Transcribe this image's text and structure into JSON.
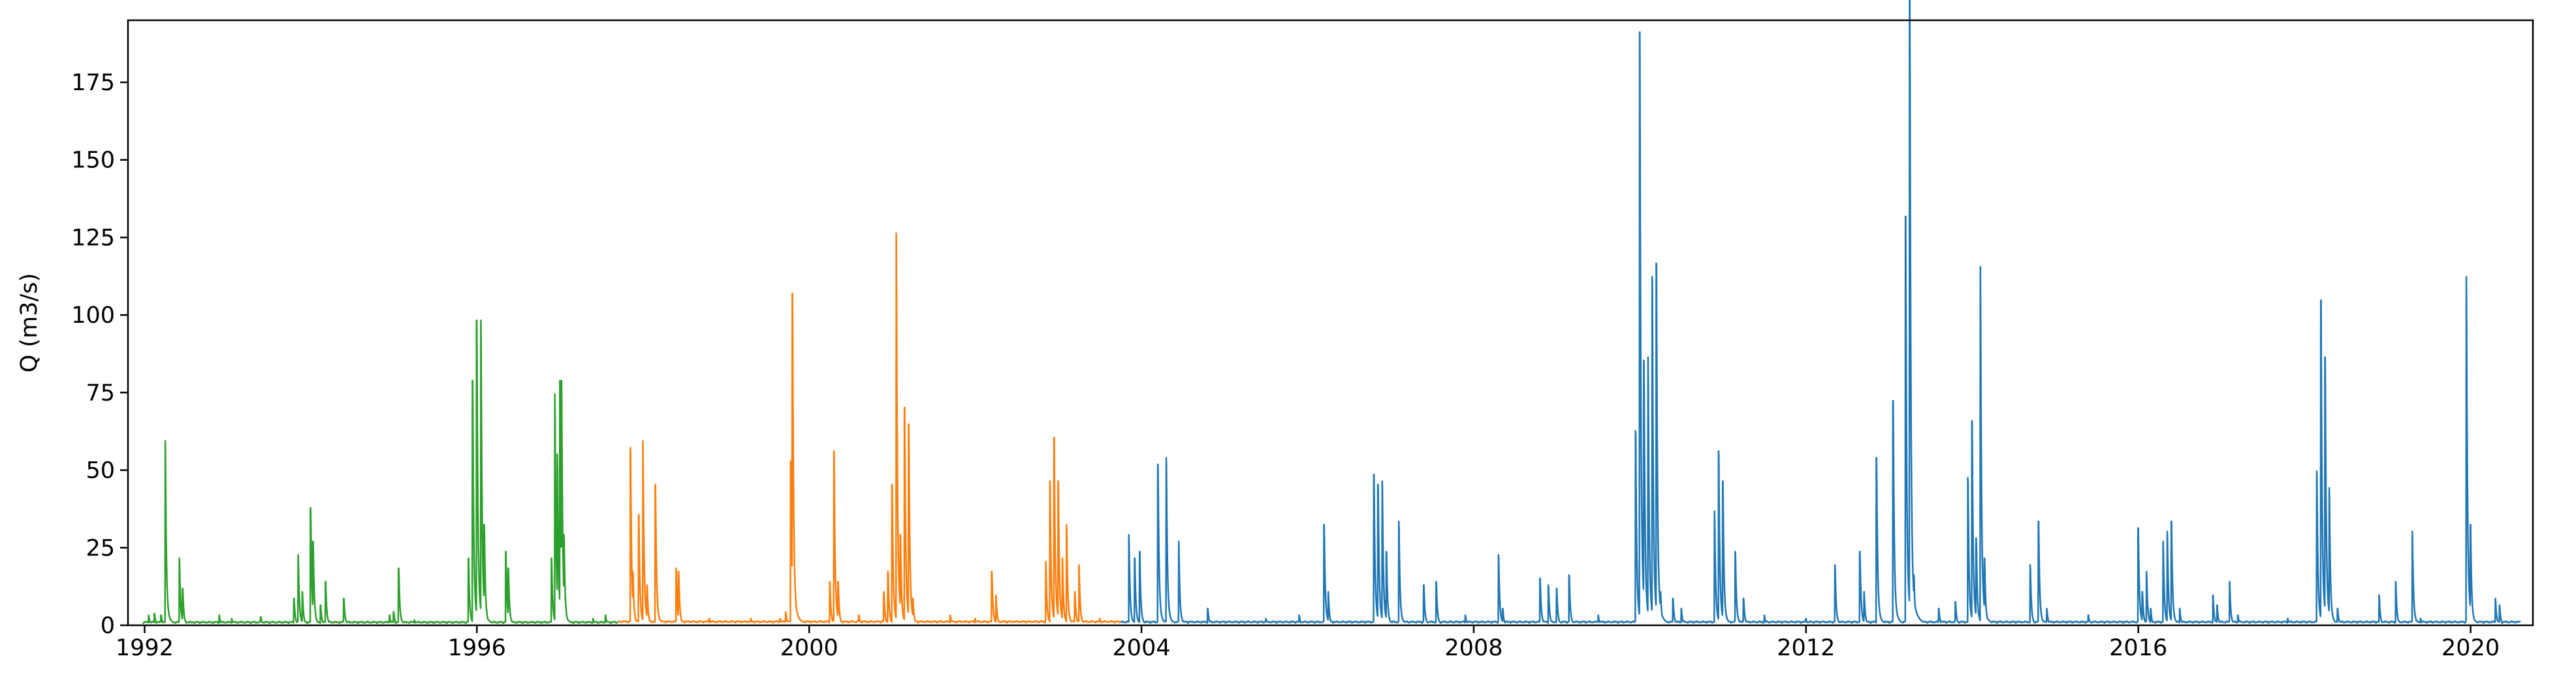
{
  "chart_data": {
    "type": "line",
    "title": "",
    "xlabel": "",
    "ylabel": "Q (m3/s)",
    "xlim": [
      1991.8,
      2020.75
    ],
    "ylim": [
      0,
      195
    ],
    "grid": false,
    "legend": "none",
    "x_ticks": [
      {
        "value": 1992,
        "label": "1992"
      },
      {
        "value": 1996,
        "label": "1996"
      },
      {
        "value": 2000,
        "label": "2000"
      },
      {
        "value": 2004,
        "label": "2004"
      },
      {
        "value": 2008,
        "label": "2008"
      },
      {
        "value": 2012,
        "label": "2012"
      },
      {
        "value": 2016,
        "label": "2016"
      },
      {
        "value": 2020,
        "label": "2020"
      }
    ],
    "y_ticks": [
      {
        "value": 0,
        "label": "0"
      },
      {
        "value": 25,
        "label": "25"
      },
      {
        "value": 50,
        "label": "50"
      },
      {
        "value": 75,
        "label": "75"
      },
      {
        "value": 100,
        "label": "100"
      },
      {
        "value": 125,
        "label": "125"
      },
      {
        "value": 150,
        "label": "150"
      },
      {
        "value": 175,
        "label": "175"
      }
    ],
    "series": [
      {
        "color": "#2ca02c",
        "x_range": [
          1991.98,
          1997.7
        ],
        "baseline": 0.6,
        "peaks": [
          [
            1992.05,
            3
          ],
          [
            1992.12,
            3.5
          ],
          [
            1992.2,
            3
          ],
          [
            1992.25,
            55
          ],
          [
            1992.42,
            20
          ],
          [
            1992.46,
            11
          ],
          [
            1992.9,
            3
          ],
          [
            1993.05,
            2
          ],
          [
            1993.4,
            2.5
          ],
          [
            1993.8,
            8
          ],
          [
            1993.85,
            21
          ],
          [
            1993.9,
            10
          ],
          [
            1994.0,
            35
          ],
          [
            1994.03,
            25
          ],
          [
            1994.12,
            6
          ],
          [
            1994.18,
            13
          ],
          [
            1994.4,
            8
          ],
          [
            1994.95,
            3
          ],
          [
            1995.0,
            4
          ],
          [
            1995.06,
            17
          ],
          [
            1995.25,
            1.5
          ],
          [
            1995.9,
            20
          ],
          [
            1995.95,
            73
          ],
          [
            1996.0,
            91
          ],
          [
            1996.05,
            91
          ],
          [
            1996.09,
            30
          ],
          [
            1996.35,
            22
          ],
          [
            1996.38,
            17
          ],
          [
            1996.9,
            20
          ],
          [
            1996.94,
            69
          ],
          [
            1996.97,
            51
          ],
          [
            1997.0,
            73
          ],
          [
            1997.02,
            73
          ],
          [
            1997.05,
            27
          ],
          [
            1997.4,
            2
          ],
          [
            1997.55,
            3
          ]
        ]
      },
      {
        "color": "#ff7f0e",
        "x_range": [
          1997.7,
          2003.75
        ],
        "baseline": 0.8,
        "peaks": [
          [
            1997.85,
            53
          ],
          [
            1997.88,
            16
          ],
          [
            1997.95,
            33
          ],
          [
            1998.0,
            55
          ],
          [
            1998.05,
            12
          ],
          [
            1998.15,
            42
          ],
          [
            1998.4,
            17
          ],
          [
            1998.43,
            16
          ],
          [
            1998.8,
            2
          ],
          [
            1999.3,
            2
          ],
          [
            1999.65,
            2
          ],
          [
            1999.72,
            4
          ],
          [
            1999.78,
            49
          ],
          [
            1999.8,
            99
          ],
          [
            2000.25,
            13
          ],
          [
            2000.3,
            52
          ],
          [
            2000.35,
            13
          ],
          [
            2000.6,
            3
          ],
          [
            2000.9,
            10
          ],
          [
            2000.95,
            16
          ],
          [
            2001.0,
            42
          ],
          [
            2001.05,
            117
          ],
          [
            2001.1,
            27
          ],
          [
            2001.15,
            65
          ],
          [
            2001.2,
            60
          ],
          [
            2001.25,
            8
          ],
          [
            2001.7,
            3
          ],
          [
            2002.0,
            2
          ],
          [
            2002.2,
            16
          ],
          [
            2002.25,
            9
          ],
          [
            2002.85,
            19
          ],
          [
            2002.9,
            43
          ],
          [
            2002.95,
            56
          ],
          [
            2003.0,
            43
          ],
          [
            2003.05,
            20
          ],
          [
            2003.1,
            30
          ],
          [
            2003.2,
            10
          ],
          [
            2003.25,
            18
          ],
          [
            2003.5,
            2
          ]
        ]
      },
      {
        "color": "#1f77b4",
        "x_range": [
          2003.75,
          2020.6
        ],
        "baseline": 0.7,
        "peaks": [
          [
            2003.85,
            27
          ],
          [
            2003.92,
            20
          ],
          [
            2003.98,
            22
          ],
          [
            2004.2,
            48
          ],
          [
            2004.3,
            50
          ],
          [
            2004.45,
            25
          ],
          [
            2004.8,
            5
          ],
          [
            2005.5,
            2
          ],
          [
            2005.9,
            3
          ],
          [
            2006.2,
            30
          ],
          [
            2006.25,
            10
          ],
          [
            2006.8,
            45
          ],
          [
            2006.85,
            42
          ],
          [
            2006.9,
            43
          ],
          [
            2006.95,
            22
          ],
          [
            2007.1,
            31
          ],
          [
            2007.4,
            12
          ],
          [
            2007.55,
            13
          ],
          [
            2007.9,
            3
          ],
          [
            2008.3,
            21
          ],
          [
            2008.35,
            5
          ],
          [
            2008.8,
            14
          ],
          [
            2008.9,
            12
          ],
          [
            2009.0,
            11
          ],
          [
            2009.15,
            15
          ],
          [
            2009.5,
            3
          ],
          [
            2009.95,
            58
          ],
          [
            2010.0,
            177
          ],
          [
            2010.05,
            79
          ],
          [
            2010.1,
            80
          ],
          [
            2010.15,
            104
          ],
          [
            2010.2,
            108
          ],
          [
            2010.25,
            10
          ],
          [
            2010.4,
            8
          ],
          [
            2010.5,
            5
          ],
          [
            2010.9,
            34
          ],
          [
            2010.95,
            52
          ],
          [
            2011.0,
            43
          ],
          [
            2011.15,
            22
          ],
          [
            2011.25,
            8
          ],
          [
            2011.5,
            3
          ],
          [
            2012.0,
            2
          ],
          [
            2012.35,
            18
          ],
          [
            2012.65,
            22
          ],
          [
            2012.7,
            10
          ],
          [
            2012.85,
            50
          ],
          [
            2013.05,
            67
          ],
          [
            2013.2,
            122
          ],
          [
            2013.25,
            187
          ],
          [
            2013.3,
            15
          ],
          [
            2013.6,
            5
          ],
          [
            2013.8,
            7
          ],
          [
            2013.95,
            44
          ],
          [
            2014.0,
            61
          ],
          [
            2014.05,
            26
          ],
          [
            2014.1,
            107
          ],
          [
            2014.15,
            20
          ],
          [
            2014.7,
            18
          ],
          [
            2014.8,
            31
          ],
          [
            2014.9,
            5
          ],
          [
            2015.4,
            3
          ],
          [
            2016.0,
            29
          ],
          [
            2016.05,
            10
          ],
          [
            2016.1,
            16
          ],
          [
            2016.15,
            5
          ],
          [
            2016.3,
            25
          ],
          [
            2016.35,
            28
          ],
          [
            2016.4,
            31
          ],
          [
            2016.5,
            5
          ],
          [
            2016.9,
            9
          ],
          [
            2016.95,
            6
          ],
          [
            2017.1,
            13
          ],
          [
            2017.2,
            3
          ],
          [
            2017.8,
            2
          ],
          [
            2018.15,
            46
          ],
          [
            2018.2,
            97
          ],
          [
            2018.25,
            80
          ],
          [
            2018.3,
            41
          ],
          [
            2018.4,
            5
          ],
          [
            2018.9,
            9
          ],
          [
            2019.1,
            13
          ],
          [
            2019.3,
            28
          ],
          [
            2019.4,
            2
          ],
          [
            2019.95,
            104
          ],
          [
            2020.0,
            30
          ],
          [
            2020.3,
            8
          ],
          [
            2020.35,
            6
          ]
        ]
      }
    ]
  }
}
